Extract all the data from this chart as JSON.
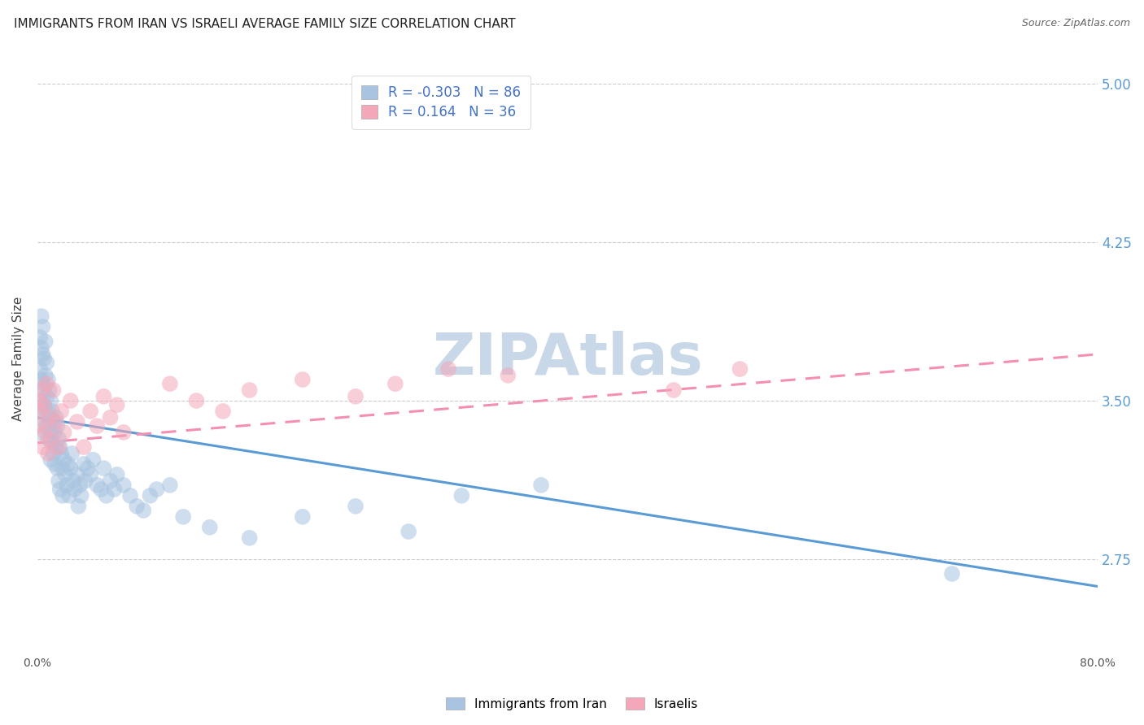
{
  "title": "IMMIGRANTS FROM IRAN VS ISRAELI AVERAGE FAMILY SIZE CORRELATION CHART",
  "source": "Source: ZipAtlas.com",
  "ylabel": "Average Family Size",
  "watermark": "ZIPAtlas",
  "xlim": [
    0.0,
    0.8
  ],
  "ylim": [
    2.3,
    5.1
  ],
  "yticks": [
    2.75,
    3.5,
    4.25,
    5.0
  ],
  "ytick_labels": [
    "2.75",
    "3.50",
    "4.25",
    "5.00"
  ],
  "xticks": [
    0.0,
    0.1,
    0.2,
    0.3,
    0.4,
    0.5,
    0.6,
    0.7,
    0.8
  ],
  "xtick_labels": [
    "0.0%",
    "",
    "",
    "",
    "",
    "",
    "",
    "",
    "80.0%"
  ],
  "legend_entries": [
    {
      "color": "#a8c4e0",
      "R": "-0.303",
      "N": "86",
      "label": "Immigrants from Iran"
    },
    {
      "color": "#f4a7b9",
      "R": "0.164",
      "N": "36",
      "label": "Israelis"
    }
  ],
  "blue_scatter_x": [
    0.001,
    0.001,
    0.002,
    0.002,
    0.002,
    0.003,
    0.003,
    0.003,
    0.004,
    0.004,
    0.004,
    0.005,
    0.005,
    0.005,
    0.006,
    0.006,
    0.006,
    0.007,
    0.007,
    0.007,
    0.008,
    0.008,
    0.008,
    0.009,
    0.009,
    0.01,
    0.01,
    0.01,
    0.011,
    0.011,
    0.012,
    0.012,
    0.013,
    0.013,
    0.014,
    0.014,
    0.015,
    0.015,
    0.016,
    0.016,
    0.017,
    0.017,
    0.018,
    0.019,
    0.019,
    0.02,
    0.021,
    0.022,
    0.023,
    0.024,
    0.025,
    0.026,
    0.027,
    0.028,
    0.03,
    0.031,
    0.032,
    0.033,
    0.035,
    0.036,
    0.038,
    0.04,
    0.042,
    0.045,
    0.048,
    0.05,
    0.052,
    0.055,
    0.058,
    0.06,
    0.065,
    0.07,
    0.075,
    0.08,
    0.085,
    0.09,
    0.1,
    0.11,
    0.13,
    0.16,
    0.2,
    0.24,
    0.28,
    0.32,
    0.38,
    0.69
  ],
  "blue_scatter_y": [
    3.42,
    3.35,
    3.8,
    3.65,
    3.5,
    3.9,
    3.75,
    3.6,
    3.85,
    3.72,
    3.58,
    3.7,
    3.55,
    3.48,
    3.78,
    3.62,
    3.45,
    3.68,
    3.52,
    3.38,
    3.6,
    3.45,
    3.32,
    3.55,
    3.4,
    3.5,
    3.35,
    3.22,
    3.45,
    3.3,
    3.4,
    3.25,
    3.35,
    3.2,
    3.42,
    3.28,
    3.38,
    3.18,
    3.32,
    3.12,
    3.28,
    3.08,
    3.25,
    3.18,
    3.05,
    3.22,
    3.15,
    3.1,
    3.2,
    3.05,
    3.18,
    3.25,
    3.12,
    3.08,
    3.15,
    3.0,
    3.1,
    3.05,
    3.2,
    3.12,
    3.18,
    3.15,
    3.22,
    3.1,
    3.08,
    3.18,
    3.05,
    3.12,
    3.08,
    3.15,
    3.1,
    3.05,
    3.0,
    2.98,
    3.05,
    3.08,
    3.1,
    2.95,
    2.9,
    2.85,
    2.95,
    3.0,
    2.88,
    3.05,
    3.1,
    2.68
  ],
  "pink_scatter_x": [
    0.001,
    0.001,
    0.002,
    0.003,
    0.004,
    0.005,
    0.006,
    0.007,
    0.008,
    0.009,
    0.01,
    0.012,
    0.014,
    0.016,
    0.018,
    0.02,
    0.025,
    0.03,
    0.035,
    0.04,
    0.045,
    0.05,
    0.055,
    0.06,
    0.065,
    0.1,
    0.12,
    0.14,
    0.16,
    0.2,
    0.24,
    0.27,
    0.31,
    0.355,
    0.48,
    0.53
  ],
  "pink_scatter_y": [
    3.38,
    3.5,
    3.45,
    3.55,
    3.28,
    3.48,
    3.35,
    3.58,
    3.25,
    3.42,
    3.32,
    3.55,
    3.4,
    3.28,
    3.45,
    3.35,
    3.5,
    3.4,
    3.28,
    3.45,
    3.38,
    3.52,
    3.42,
    3.48,
    3.35,
    3.58,
    3.5,
    3.45,
    3.55,
    3.6,
    3.52,
    3.58,
    3.65,
    3.62,
    3.55,
    3.65
  ],
  "blue_line_x": [
    0.0,
    0.8
  ],
  "blue_line_y": [
    3.42,
    2.62
  ],
  "pink_line_x": [
    0.0,
    0.8
  ],
  "pink_line_y": [
    3.3,
    3.72
  ],
  "blue_color": "#5b9bd5",
  "pink_color": "#f48fb1",
  "blue_scatter_color": "#a8c4e0",
  "pink_scatter_color": "#f4a7b9",
  "grid_color": "#cccccc",
  "title_fontsize": 11,
  "source_fontsize": 9,
  "watermark_color": "#c8d8e8",
  "watermark_fontsize": 52,
  "right_ytick_color": "#5b9bd5",
  "legend_text_color": "#4472c4",
  "scatter_size": 200,
  "scatter_alpha": 0.55
}
